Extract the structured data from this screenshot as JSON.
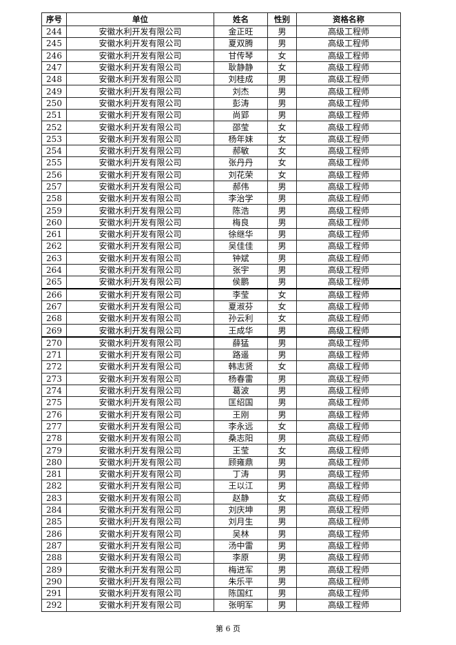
{
  "table": {
    "headers": [
      "序号",
      "单位",
      "姓名",
      "性别",
      "资格名称"
    ],
    "rows": [
      [
        "244",
        "安徽水利开发有限公司",
        "金正旺",
        "男",
        "高级工程师"
      ],
      [
        "245",
        "安徽水利开发有限公司",
        "夏双腾",
        "男",
        "高级工程师"
      ],
      [
        "246",
        "安徽水利开发有限公司",
        "甘传琴",
        "女",
        "高级工程师"
      ],
      [
        "247",
        "安徽水利开发有限公司",
        "耿静静",
        "女",
        "高级工程师"
      ],
      [
        "248",
        "安徽水利开发有限公司",
        "刘桂成",
        "男",
        "高级工程师"
      ],
      [
        "249",
        "安徽水利开发有限公司",
        "刘杰",
        "男",
        "高级工程师"
      ],
      [
        "250",
        "安徽水利开发有限公司",
        "彭涛",
        "男",
        "高级工程师"
      ],
      [
        "251",
        "安徽水利开发有限公司",
        "尚郢",
        "男",
        "高级工程师"
      ],
      [
        "252",
        "安徽水利开发有限公司",
        "邵莹",
        "女",
        "高级工程师"
      ],
      [
        "253",
        "安徽水利开发有限公司",
        "杨年妹",
        "女",
        "高级工程师"
      ],
      [
        "254",
        "安徽水利开发有限公司",
        "郝敏",
        "女",
        "高级工程师"
      ],
      [
        "255",
        "安徽水利开发有限公司",
        "张丹丹",
        "女",
        "高级工程师"
      ],
      [
        "256",
        "安徽水利开发有限公司",
        "刘花荣",
        "女",
        "高级工程师"
      ],
      [
        "257",
        "安徽水利开发有限公司",
        "郝伟",
        "男",
        "高级工程师"
      ],
      [
        "258",
        "安徽水利开发有限公司",
        "李治学",
        "男",
        "高级工程师"
      ],
      [
        "259",
        "安徽水利开发有限公司",
        "陈浩",
        "男",
        "高级工程师"
      ],
      [
        "260",
        "安徽水利开发有限公司",
        "梅良",
        "男",
        "高级工程师"
      ],
      [
        "261",
        "安徽水利开发有限公司",
        "徐继华",
        "男",
        "高级工程师"
      ],
      [
        "262",
        "安徽水利开发有限公司",
        "吴佳佳",
        "男",
        "高级工程师"
      ],
      [
        "263",
        "安徽水利开发有限公司",
        "钟斌",
        "男",
        "高级工程师"
      ],
      [
        "264",
        "安徽水利开发有限公司",
        "张宇",
        "男",
        "高级工程师"
      ],
      [
        "265",
        "安徽水利开发有限公司",
        "侯鹏",
        "男",
        "高级工程师"
      ],
      [
        "266",
        "安徽水利开发有限公司",
        "李莹",
        "女",
        "高级工程师"
      ],
      [
        "267",
        "安徽水利开发有限公司",
        "夏淑芬",
        "女",
        "高级工程师"
      ],
      [
        "268",
        "安徽水利开发有限公司",
        "孙云利",
        "女",
        "高级工程师"
      ],
      [
        "269",
        "安徽水利开发有限公司",
        "王成华",
        "男",
        "高级工程师"
      ],
      [
        "270",
        "安徽水利开发有限公司",
        "薛猛",
        "男",
        "高级工程师"
      ],
      [
        "271",
        "安徽水利开发有限公司",
        "路遥",
        "男",
        "高级工程师"
      ],
      [
        "272",
        "安徽水利开发有限公司",
        "韩志贤",
        "女",
        "高级工程师"
      ],
      [
        "273",
        "安徽水利开发有限公司",
        "杨春雷",
        "男",
        "高级工程师"
      ],
      [
        "274",
        "安徽水利开发有限公司",
        "葛波",
        "男",
        "高级工程师"
      ],
      [
        "275",
        "安徽水利开发有限公司",
        "匡绍国",
        "男",
        "高级工程师"
      ],
      [
        "276",
        "安徽水利开发有限公司",
        "王刚",
        "男",
        "高级工程师"
      ],
      [
        "277",
        "安徽水利开发有限公司",
        "李永远",
        "女",
        "高级工程师"
      ],
      [
        "278",
        "安徽水利开发有限公司",
        "桑志阳",
        "男",
        "高级工程师"
      ],
      [
        "279",
        "安徽水利开发有限公司",
        "王莹",
        "女",
        "高级工程师"
      ],
      [
        "280",
        "安徽水利开发有限公司",
        "顾雍鼎",
        "男",
        "高级工程师"
      ],
      [
        "281",
        "安徽水利开发有限公司",
        "丁涛",
        "男",
        "高级工程师"
      ],
      [
        "282",
        "安徽水利开发有限公司",
        "王以江",
        "男",
        "高级工程师"
      ],
      [
        "283",
        "安徽水利开发有限公司",
        "赵静",
        "女",
        "高级工程师"
      ],
      [
        "284",
        "安徽水利开发有限公司",
        "刘庆坤",
        "男",
        "高级工程师"
      ],
      [
        "285",
        "安徽水利开发有限公司",
        "刘月生",
        "男",
        "高级工程师"
      ],
      [
        "286",
        "安徽水利开发有限公司",
        "吴林",
        "男",
        "高级工程师"
      ],
      [
        "287",
        "安徽水利开发有限公司",
        "汤中雷",
        "男",
        "高级工程师"
      ],
      [
        "288",
        "安徽水利开发有限公司",
        "李原",
        "男",
        "高级工程师"
      ],
      [
        "289",
        "安徽水利开发有限公司",
        "梅进军",
        "男",
        "高级工程师"
      ],
      [
        "290",
        "安徽水利开发有限公司",
        "朱乐平",
        "男",
        "高级工程师"
      ],
      [
        "291",
        "安徽水利开发有限公司",
        "陈国红",
        "男",
        "高级工程师"
      ],
      [
        "292",
        "安徽水利开发有限公司",
        "张明军",
        "男",
        "高级工程师"
      ]
    ]
  },
  "footer": {
    "page_label": "第 6 页"
  }
}
